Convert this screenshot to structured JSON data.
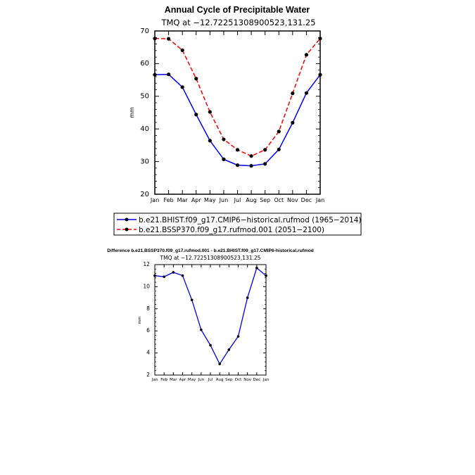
{
  "chart_data": [
    {
      "type": "line",
      "title": "Annual Cycle of Precipitable Water",
      "subtitle": "TMQ at  −12.72251308900523,131.25",
      "ylabel": "mm",
      "xlabel": "",
      "categories": [
        "Jan",
        "Feb",
        "Mar",
        "Apr",
        "May",
        "Jun",
        "Jul",
        "Aug",
        "Sep",
        "Oct",
        "Nov",
        "Dec",
        "Jan"
      ],
      "ylim": [
        20,
        70
      ],
      "yticks": [
        20,
        30,
        40,
        50,
        60,
        70
      ],
      "grid": false,
      "legend_position": "bottom",
      "series": [
        {
          "name": "b.e21.BHIST.f09_g17.CMIP6−historical.rufmod (1965−2014)",
          "color": "#0000ff",
          "style": "solid",
          "values": [
            56.6,
            56.7,
            52.8,
            44.4,
            36.4,
            30.7,
            28.9,
            28.7,
            29.3,
            33.7,
            41.9,
            51.0,
            56.6
          ]
        },
        {
          "name": "b.e21.BSSP370.f09_g17.rufmod.001 (2051−2100)",
          "color": "#ff0000",
          "style": "dashed",
          "values": [
            67.7,
            67.6,
            64.1,
            55.4,
            45.2,
            36.8,
            33.6,
            31.7,
            33.6,
            39.2,
            50.9,
            62.7,
            67.7
          ]
        }
      ]
    },
    {
      "type": "line",
      "title": "Difference b.e21.BSSP370.f09_g17.rufmod.001 - b.e21.BHIST.f09_g17.CMIP6-historical.rufmod",
      "subtitle": "TMQ at  −12.72251308900523,131.25",
      "ylabel": "mm",
      "xlabel": "",
      "categories": [
        "Jan",
        "Feb",
        "Mar",
        "Apr",
        "May",
        "Jun",
        "Jul",
        "Aug",
        "Sep",
        "Oct",
        "Nov",
        "Dec",
        "Jan"
      ],
      "ylim": [
        2,
        12
      ],
      "yticks": [
        2,
        4,
        6,
        8,
        10,
        12
      ],
      "grid": false,
      "series": [
        {
          "name": "",
          "color": "#0000ff",
          "style": "solid",
          "values": [
            11.0,
            10.9,
            11.3,
            11.0,
            8.8,
            6.1,
            4.7,
            3.0,
            4.3,
            5.5,
            9.0,
            11.7,
            11.0
          ]
        }
      ]
    }
  ]
}
